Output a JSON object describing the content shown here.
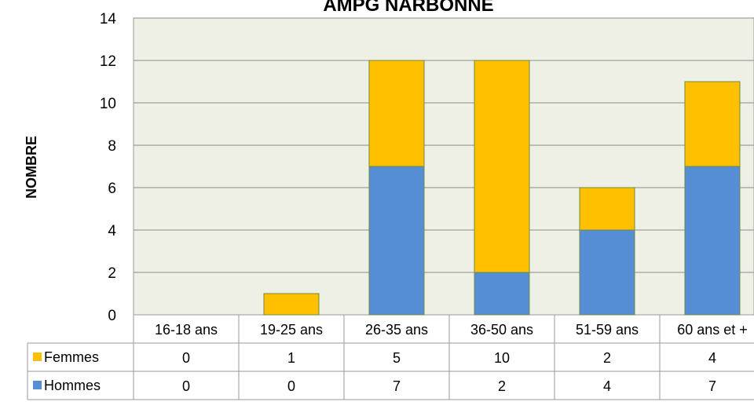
{
  "chart_data": {
    "type": "bar",
    "stacked": true,
    "title": "AMPG NARBONNE",
    "xlabel": "",
    "ylabel": "NOMBRE",
    "ylim": [
      0,
      14
    ],
    "yticks": [
      0,
      2,
      4,
      6,
      8,
      10,
      12,
      14
    ],
    "categories": [
      "16-18 ans",
      "19-25 ans",
      "26-35 ans",
      "36-50 ans",
      "51-59 ans",
      "60 ans et +"
    ],
    "series": [
      {
        "name": "Hommes",
        "color": "#558ED5",
        "values": [
          0,
          0,
          7,
          2,
          4,
          7
        ]
      },
      {
        "name": "Femmes",
        "color": "#FFC000",
        "values": [
          0,
          1,
          5,
          10,
          2,
          4
        ]
      }
    ],
    "grid": true,
    "plot_background": "#EEF0E5",
    "legend": "data-table",
    "data_table_rows": [
      "Femmes",
      "Hommes"
    ]
  }
}
